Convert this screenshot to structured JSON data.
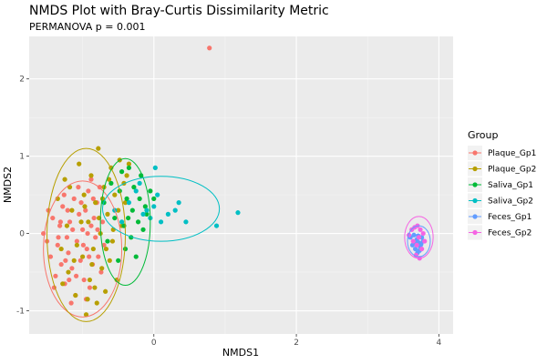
{
  "chart_data": {
    "type": "scatter",
    "title": "NMDS Plot with Bray-Curtis Dissimilarity Metric",
    "subtitle": "PERMANOVA p = 0.001",
    "xlabel": "NMDS1",
    "ylabel": "NMDS2",
    "xlim": [
      -1.75,
      4.2
    ],
    "ylim": [
      -1.3,
      2.55
    ],
    "x_ticks": [
      0,
      2,
      4
    ],
    "y_ticks": [
      -1,
      0,
      1,
      2
    ],
    "grid": true,
    "legend": {
      "title": "Group",
      "position": "right"
    },
    "series": [
      {
        "name": "Plaque_Gp1",
        "color": "#F8766D",
        "ellipse": {
          "cx": -1.0,
          "cy": -0.2,
          "rx": 0.55,
          "ry": 0.88
        },
        "points": [
          [
            -1.55,
            0.0
          ],
          [
            -1.5,
            -0.1
          ],
          [
            -1.45,
            -0.3
          ],
          [
            -1.42,
            0.2
          ],
          [
            -1.38,
            -0.55
          ],
          [
            -1.35,
            -0.15
          ],
          [
            -1.32,
            0.1
          ],
          [
            -1.3,
            -0.4
          ],
          [
            -1.28,
            0.35
          ],
          [
            -1.25,
            -0.65
          ],
          [
            -1.22,
            -0.05
          ],
          [
            -1.2,
            -0.25
          ],
          [
            -1.18,
            0.15
          ],
          [
            -1.15,
            -0.45
          ],
          [
            -1.12,
            0.45
          ],
          [
            -1.1,
            -0.8
          ],
          [
            -1.08,
            -0.1
          ],
          [
            -1.05,
            0.25
          ],
          [
            -1.03,
            -0.35
          ],
          [
            -1.0,
            0.05
          ],
          [
            -0.98,
            -0.6
          ],
          [
            -0.96,
            0.3
          ],
          [
            -0.94,
            -0.2
          ],
          [
            -0.92,
            0.55
          ],
          [
            -0.9,
            -0.7
          ],
          [
            -0.88,
            0.1
          ],
          [
            -0.86,
            -0.4
          ],
          [
            -0.84,
            0.2
          ],
          [
            -0.82,
            -0.05
          ],
          [
            -0.8,
            0.4
          ],
          [
            -0.78,
            -0.3
          ],
          [
            -0.76,
            0.6
          ],
          [
            -0.74,
            -0.5
          ],
          [
            -0.72,
            0.15
          ],
          [
            -0.7,
            -0.15
          ],
          [
            -1.48,
            0.3
          ],
          [
            -1.4,
            -0.7
          ],
          [
            -1.26,
            0.5
          ],
          [
            -1.16,
            -0.9
          ],
          [
            -1.06,
            0.6
          ],
          [
            -0.95,
            -0.85
          ],
          [
            -0.88,
            0.7
          ],
          [
            -1.34,
            -0.05
          ],
          [
            -1.14,
            0.05
          ],
          [
            -0.99,
            -0.15
          ],
          [
            -0.91,
            -0.3
          ],
          [
            -1.21,
            0.3
          ],
          [
            -1.09,
            -0.55
          ],
          [
            -0.85,
            0.45
          ],
          [
            -1.02,
            0.4
          ],
          [
            -0.93,
            0.0
          ],
          [
            -1.24,
            -0.35
          ],
          [
            -1.31,
            0.15
          ],
          [
            -1.19,
            -0.6
          ],
          [
            -0.79,
            0.05
          ],
          [
            0.78,
            2.4
          ]
        ]
      },
      {
        "name": "Plaque_Gp2",
        "color": "#B79F00",
        "ellipse": {
          "cx": -0.95,
          "cy": -0.02,
          "rx": 0.55,
          "ry": 1.12
        },
        "points": [
          [
            -1.35,
            0.45
          ],
          [
            -1.3,
            -0.2
          ],
          [
            -1.25,
            0.7
          ],
          [
            -1.2,
            -0.5
          ],
          [
            -1.15,
            0.3
          ],
          [
            -1.1,
            -0.8
          ],
          [
            -1.05,
            0.9
          ],
          [
            -1.0,
            -0.3
          ],
          [
            -0.98,
            0.5
          ],
          [
            -0.95,
            -1.05
          ],
          [
            -0.92,
            0.15
          ],
          [
            -0.9,
            -0.6
          ],
          [
            -0.88,
            0.75
          ],
          [
            -0.85,
            -0.2
          ],
          [
            -0.82,
            0.4
          ],
          [
            -0.8,
            -0.9
          ],
          [
            -0.78,
            1.1
          ],
          [
            -0.75,
            0.0
          ],
          [
            -0.73,
            -0.45
          ],
          [
            -0.7,
            0.6
          ],
          [
            -0.68,
            -0.75
          ],
          [
            -0.65,
            0.25
          ],
          [
            -0.62,
            -0.35
          ],
          [
            -0.6,
            0.85
          ],
          [
            -0.58,
            -0.1
          ],
          [
            -0.55,
            0.5
          ],
          [
            -0.52,
            -0.6
          ],
          [
            -0.5,
            0.3
          ],
          [
            -0.48,
            0.95
          ],
          [
            -0.45,
            0.1
          ],
          [
            -0.42,
            0.65
          ],
          [
            -0.4,
            0.4
          ],
          [
            -0.38,
            0.75
          ],
          [
            -0.35,
            0.9
          ],
          [
            -1.28,
            -0.65
          ],
          [
            -1.18,
            0.6
          ],
          [
            -1.08,
            -0.15
          ],
          [
            -0.97,
            0.35
          ],
          [
            -0.87,
            -0.4
          ],
          [
            -0.77,
            0.2
          ],
          [
            -0.67,
            -0.2
          ],
          [
            -0.57,
            0.05
          ],
          [
            -1.12,
            -0.35
          ],
          [
            -1.02,
            0.15
          ],
          [
            -0.83,
            -0.7
          ],
          [
            -0.72,
            0.45
          ],
          [
            -0.63,
            0.7
          ],
          [
            -0.93,
            -0.85
          ],
          [
            -1.22,
            0.1
          ]
        ]
      },
      {
        "name": "Saliva_Gp1",
        "color": "#00BA38",
        "ellipse": {
          "cx": -0.4,
          "cy": 0.15,
          "rx": 0.35,
          "ry": 0.82
        },
        "points": [
          [
            -0.7,
            0.4
          ],
          [
            -0.65,
            -0.1
          ],
          [
            -0.6,
            0.65
          ],
          [
            -0.55,
            0.2
          ],
          [
            -0.5,
            -0.35
          ],
          [
            -0.45,
            0.8
          ],
          [
            -0.42,
            0.1
          ],
          [
            -0.4,
            -0.2
          ],
          [
            -0.38,
            0.45
          ],
          [
            -0.35,
            0.85
          ],
          [
            -0.32,
            -0.05
          ],
          [
            -0.3,
            0.3
          ],
          [
            -0.28,
            0.6
          ],
          [
            -0.25,
            -0.3
          ],
          [
            -0.22,
            0.15
          ],
          [
            -0.2,
            0.45
          ],
          [
            -0.18,
            0.75
          ],
          [
            -0.15,
            0.05
          ],
          [
            -0.12,
            0.35
          ],
          [
            -0.1,
            0.25
          ],
          [
            -0.05,
            0.55
          ],
          [
            0.0,
            0.45
          ],
          [
            -0.48,
            0.55
          ],
          [
            -0.36,
            0.2
          ]
        ]
      },
      {
        "name": "Saliva_Gp2",
        "color": "#00BFC4",
        "ellipse": {
          "cx": 0.1,
          "cy": 0.32,
          "rx": 0.82,
          "ry": 0.42
        },
        "points": [
          [
            -0.55,
            0.3
          ],
          [
            -0.45,
            0.15
          ],
          [
            -0.35,
            0.4
          ],
          [
            -0.25,
            0.55
          ],
          [
            -0.15,
            0.25
          ],
          [
            -0.1,
            0.3
          ],
          [
            -0.05,
            0.2
          ],
          [
            0.0,
            0.35
          ],
          [
            0.05,
            0.5
          ],
          [
            0.1,
            0.15
          ],
          [
            0.2,
            0.25
          ],
          [
            0.3,
            0.3
          ],
          [
            0.45,
            0.15
          ],
          [
            0.88,
            0.1
          ],
          [
            1.18,
            0.27
          ],
          [
            -0.2,
            0.65
          ],
          [
            0.02,
            0.85
          ],
          [
            0.35,
            0.4
          ]
        ]
      },
      {
        "name": "Feces_Gp1",
        "color": "#619CFF",
        "ellipse": {
          "cx": 3.72,
          "cy": -0.1,
          "rx": 0.16,
          "ry": 0.2
        },
        "points": [
          [
            3.6,
            -0.05
          ],
          [
            3.63,
            -0.15
          ],
          [
            3.65,
            -0.02
          ],
          [
            3.67,
            -0.2
          ],
          [
            3.69,
            -0.08
          ],
          [
            3.7,
            -0.25
          ],
          [
            3.72,
            -0.12
          ],
          [
            3.74,
            -0.18
          ],
          [
            3.76,
            -0.05
          ],
          [
            3.78,
            -0.1
          ],
          [
            3.66,
            -0.12
          ],
          [
            3.71,
            -0.03
          ],
          [
            3.73,
            -0.22
          ],
          [
            3.75,
            -0.14
          ]
        ]
      },
      {
        "name": "Feces_Gp2",
        "color": "#F564E3",
        "ellipse": {
          "cx": 3.72,
          "cy": -0.05,
          "rx": 0.2,
          "ry": 0.27
        },
        "points": [
          [
            3.58,
            -0.02
          ],
          [
            3.62,
            0.05
          ],
          [
            3.64,
            -0.1
          ],
          [
            3.66,
            0.08
          ],
          [
            3.68,
            -0.28
          ],
          [
            3.7,
            0.1
          ],
          [
            3.72,
            -0.05
          ],
          [
            3.74,
            0.05
          ],
          [
            3.76,
            -0.2
          ],
          [
            3.78,
            0.0
          ],
          [
            3.8,
            -0.1
          ],
          [
            3.69,
            -0.15
          ],
          [
            3.73,
            -0.32
          ]
        ]
      }
    ]
  }
}
